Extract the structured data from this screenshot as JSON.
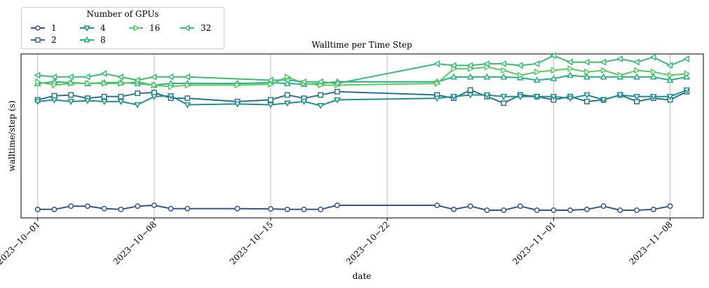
{
  "chart_data": {
    "type": "line",
    "title": "Walltime per Time Step",
    "xlabel": "date",
    "ylabel": "walltime/step (s)",
    "legend_title": "Number of GPUs",
    "legend_position": "top-left, above the plot",
    "grid": "vertical lines only",
    "x_range": [
      "2023-09-30",
      "2023-11-10"
    ],
    "x_ticks": [
      "2023−10−01",
      "2023−10−08",
      "2023−10−15",
      "2023−10−22",
      "2023−11−01",
      "2023−11−08"
    ],
    "y_range": [
      0,
      10
    ],
    "y_tick_labels_shown": false,
    "series": [
      {
        "name": "1",
        "marker": "circle",
        "color": "#3b528b",
        "points": [
          [
            "2023-10-01",
            0.52
          ],
          [
            "2023-10-02",
            0.52
          ],
          [
            "2023-10-03",
            0.72
          ],
          [
            "2023-10-04",
            0.72
          ],
          [
            "2023-10-05",
            0.57
          ],
          [
            "2023-10-06",
            0.52
          ],
          [
            "2023-10-07",
            0.72
          ],
          [
            "2023-10-08",
            0.77
          ],
          [
            "2023-10-09",
            0.57
          ],
          [
            "2023-10-10",
            0.57
          ],
          [
            "2023-10-13",
            0.57
          ],
          [
            "2023-10-15",
            0.55
          ],
          [
            "2023-10-16",
            0.52
          ],
          [
            "2023-10-17",
            0.52
          ],
          [
            "2023-10-18",
            0.52
          ],
          [
            "2023-10-19",
            0.77
          ],
          [
            "2023-10-25",
            0.77
          ],
          [
            "2023-10-26",
            0.52
          ],
          [
            "2023-10-27",
            0.72
          ],
          [
            "2023-10-28",
            0.47
          ],
          [
            "2023-10-29",
            0.47
          ],
          [
            "2023-10-30",
            0.72
          ],
          [
            "2023-10-31",
            0.47
          ],
          [
            "2023-11-01",
            0.47
          ],
          [
            "2023-11-02",
            0.47
          ],
          [
            "2023-11-03",
            0.52
          ],
          [
            "2023-11-04",
            0.72
          ],
          [
            "2023-11-05",
            0.47
          ],
          [
            "2023-11-06",
            0.47
          ],
          [
            "2023-11-07",
            0.52
          ],
          [
            "2023-11-08",
            0.72
          ]
        ]
      },
      {
        "name": "2",
        "marker": "square",
        "color": "#2c728e",
        "points": [
          [
            "2023-10-01",
            7.2
          ],
          [
            "2023-10-02",
            7.45
          ],
          [
            "2023-10-03",
            7.5
          ],
          [
            "2023-10-04",
            7.3
          ],
          [
            "2023-10-05",
            7.4
          ],
          [
            "2023-10-06",
            7.4
          ],
          [
            "2023-10-07",
            7.6
          ],
          [
            "2023-10-08",
            7.65
          ],
          [
            "2023-10-09",
            7.3
          ],
          [
            "2023-10-10",
            7.3
          ],
          [
            "2023-10-13",
            7.1
          ],
          [
            "2023-10-15",
            7.2
          ],
          [
            "2023-10-16",
            7.5
          ],
          [
            "2023-10-17",
            7.3
          ],
          [
            "2023-10-18",
            7.5
          ],
          [
            "2023-10-19",
            7.7
          ],
          [
            "2023-10-25",
            7.5
          ],
          [
            "2023-10-26",
            7.3
          ],
          [
            "2023-10-27",
            7.8
          ],
          [
            "2023-10-28",
            7.4
          ],
          [
            "2023-10-29",
            7.0
          ],
          [
            "2023-10-30",
            7.5
          ],
          [
            "2023-10-31",
            7.4
          ],
          [
            "2023-11-01",
            7.2
          ],
          [
            "2023-11-02",
            7.4
          ],
          [
            "2023-11-03",
            7.1
          ],
          [
            "2023-11-04",
            7.2
          ],
          [
            "2023-11-05",
            7.5
          ],
          [
            "2023-11-06",
            7.1
          ],
          [
            "2023-11-07",
            7.3
          ],
          [
            "2023-11-08",
            7.2
          ],
          [
            "2023-11-09",
            7.7
          ]
        ]
      },
      {
        "name": "4",
        "marker": "triangle-down",
        "color": "#21918c",
        "points": [
          [
            "2023-10-01",
            7.1
          ],
          [
            "2023-10-02",
            7.2
          ],
          [
            "2023-10-03",
            7.1
          ],
          [
            "2023-10-04",
            7.15
          ],
          [
            "2023-10-05",
            7.1
          ],
          [
            "2023-10-06",
            7.1
          ],
          [
            "2023-10-07",
            6.9
          ],
          [
            "2023-10-08",
            7.4
          ],
          [
            "2023-10-09",
            7.45
          ],
          [
            "2023-10-10",
            6.9
          ],
          [
            "2023-10-13",
            6.95
          ],
          [
            "2023-10-15",
            6.9
          ],
          [
            "2023-10-16",
            7.0
          ],
          [
            "2023-10-17",
            7.1
          ],
          [
            "2023-10-18",
            6.85
          ],
          [
            "2023-10-19",
            7.2
          ],
          [
            "2023-10-25",
            7.3
          ],
          [
            "2023-10-26",
            7.4
          ],
          [
            "2023-10-27",
            7.5
          ],
          [
            "2023-10-28",
            7.5
          ],
          [
            "2023-10-29",
            7.4
          ],
          [
            "2023-10-30",
            7.4
          ],
          [
            "2023-10-31",
            7.4
          ],
          [
            "2023-11-01",
            7.4
          ],
          [
            "2023-11-02",
            7.3
          ],
          [
            "2023-11-03",
            7.5
          ],
          [
            "2023-11-04",
            7.2
          ],
          [
            "2023-11-05",
            7.5
          ],
          [
            "2023-11-06",
            7.4
          ],
          [
            "2023-11-07",
            7.4
          ],
          [
            "2023-11-08",
            7.4
          ],
          [
            "2023-11-09",
            7.8
          ]
        ]
      },
      {
        "name": "8",
        "marker": "triangle-up",
        "color": "#28ae80",
        "points": [
          [
            "2023-10-01",
            8.2
          ],
          [
            "2023-10-02",
            8.3
          ],
          [
            "2023-10-03",
            8.25
          ],
          [
            "2023-10-04",
            8.2
          ],
          [
            "2023-10-05",
            8.25
          ],
          [
            "2023-10-06",
            8.25
          ],
          [
            "2023-10-07",
            8.2
          ],
          [
            "2023-10-08",
            8.1
          ],
          [
            "2023-10-09",
            8.2
          ],
          [
            "2023-10-10",
            8.2
          ],
          [
            "2023-10-13",
            8.2
          ],
          [
            "2023-10-15",
            8.25
          ],
          [
            "2023-10-16",
            8.2
          ],
          [
            "2023-10-17",
            8.15
          ],
          [
            "2023-10-18",
            8.2
          ],
          [
            "2023-10-19",
            8.3
          ],
          [
            "2023-10-25",
            8.3
          ],
          [
            "2023-10-26",
            8.6
          ],
          [
            "2023-10-27",
            8.6
          ],
          [
            "2023-10-28",
            8.6
          ],
          [
            "2023-10-29",
            8.6
          ],
          [
            "2023-10-30",
            8.55
          ],
          [
            "2023-10-31",
            8.4
          ],
          [
            "2023-11-01",
            8.5
          ],
          [
            "2023-11-02",
            8.7
          ],
          [
            "2023-11-03",
            8.6
          ],
          [
            "2023-11-04",
            8.6
          ],
          [
            "2023-11-05",
            8.6
          ],
          [
            "2023-11-06",
            8.6
          ],
          [
            "2023-11-07",
            8.6
          ],
          [
            "2023-11-08",
            8.4
          ],
          [
            "2023-11-09",
            8.6
          ]
        ]
      },
      {
        "name": "16",
        "marker": "triangle-right",
        "color": "#5ec962",
        "points": [
          [
            "2023-10-01",
            8.3
          ],
          [
            "2023-10-02",
            8.1
          ],
          [
            "2023-10-03",
            8.2
          ],
          [
            "2023-10-04",
            8.2
          ],
          [
            "2023-10-05",
            8.2
          ],
          [
            "2023-10-06",
            8.2
          ],
          [
            "2023-10-07",
            8.3
          ],
          [
            "2023-10-08",
            8.1
          ],
          [
            "2023-10-09",
            8.0
          ],
          [
            "2023-10-10",
            8.1
          ],
          [
            "2023-10-13",
            8.1
          ],
          [
            "2023-10-15",
            8.15
          ],
          [
            "2023-10-16",
            8.6
          ],
          [
            "2023-10-17",
            8.2
          ],
          [
            "2023-10-18",
            8.1
          ],
          [
            "2023-10-19",
            8.1
          ],
          [
            "2023-10-25",
            8.2
          ],
          [
            "2023-10-26",
            9.1
          ],
          [
            "2023-10-27",
            9.1
          ],
          [
            "2023-10-28",
            9.2
          ],
          [
            "2023-10-29",
            9.0
          ],
          [
            "2023-10-30",
            8.7
          ],
          [
            "2023-10-31",
            8.9
          ],
          [
            "2023-11-01",
            9.0
          ],
          [
            "2023-11-02",
            9.1
          ],
          [
            "2023-11-03",
            8.9
          ],
          [
            "2023-11-04",
            9.0
          ],
          [
            "2023-11-05",
            8.7
          ],
          [
            "2023-11-06",
            9.0
          ],
          [
            "2023-11-07",
            8.9
          ],
          [
            "2023-11-08",
            8.7
          ],
          [
            "2023-11-09",
            8.8
          ]
        ]
      },
      {
        "name": "32",
        "marker": "triangle-left",
        "color": "#3cbb75",
        "points": [
          [
            "2023-10-01",
            8.7
          ],
          [
            "2023-10-02",
            8.6
          ],
          [
            "2023-10-03",
            8.6
          ],
          [
            "2023-10-04",
            8.6
          ],
          [
            "2023-10-05",
            8.8
          ],
          [
            "2023-10-06",
            8.6
          ],
          [
            "2023-10-07",
            8.4
          ],
          [
            "2023-10-08",
            8.6
          ],
          [
            "2023-10-09",
            8.6
          ],
          [
            "2023-10-10",
            8.6
          ],
          [
            "2023-10-15",
            8.4
          ],
          [
            "2023-10-16",
            8.4
          ],
          [
            "2023-10-17",
            8.3
          ],
          [
            "2023-10-18",
            8.3
          ],
          [
            "2023-10-19",
            8.2
          ],
          [
            "2023-10-25",
            9.4
          ],
          [
            "2023-10-26",
            9.3
          ],
          [
            "2023-10-27",
            9.3
          ],
          [
            "2023-10-28",
            9.4
          ],
          [
            "2023-10-29",
            9.4
          ],
          [
            "2023-10-30",
            9.3
          ],
          [
            "2023-10-31",
            9.4
          ],
          [
            "2023-11-01",
            9.9
          ],
          [
            "2023-11-02",
            9.5
          ],
          [
            "2023-11-03",
            9.5
          ],
          [
            "2023-11-04",
            9.5
          ],
          [
            "2023-11-05",
            9.7
          ],
          [
            "2023-11-06",
            9.5
          ],
          [
            "2023-11-07",
            9.8
          ],
          [
            "2023-11-08",
            9.3
          ],
          [
            "2023-11-09",
            9.7
          ]
        ]
      }
    ]
  }
}
